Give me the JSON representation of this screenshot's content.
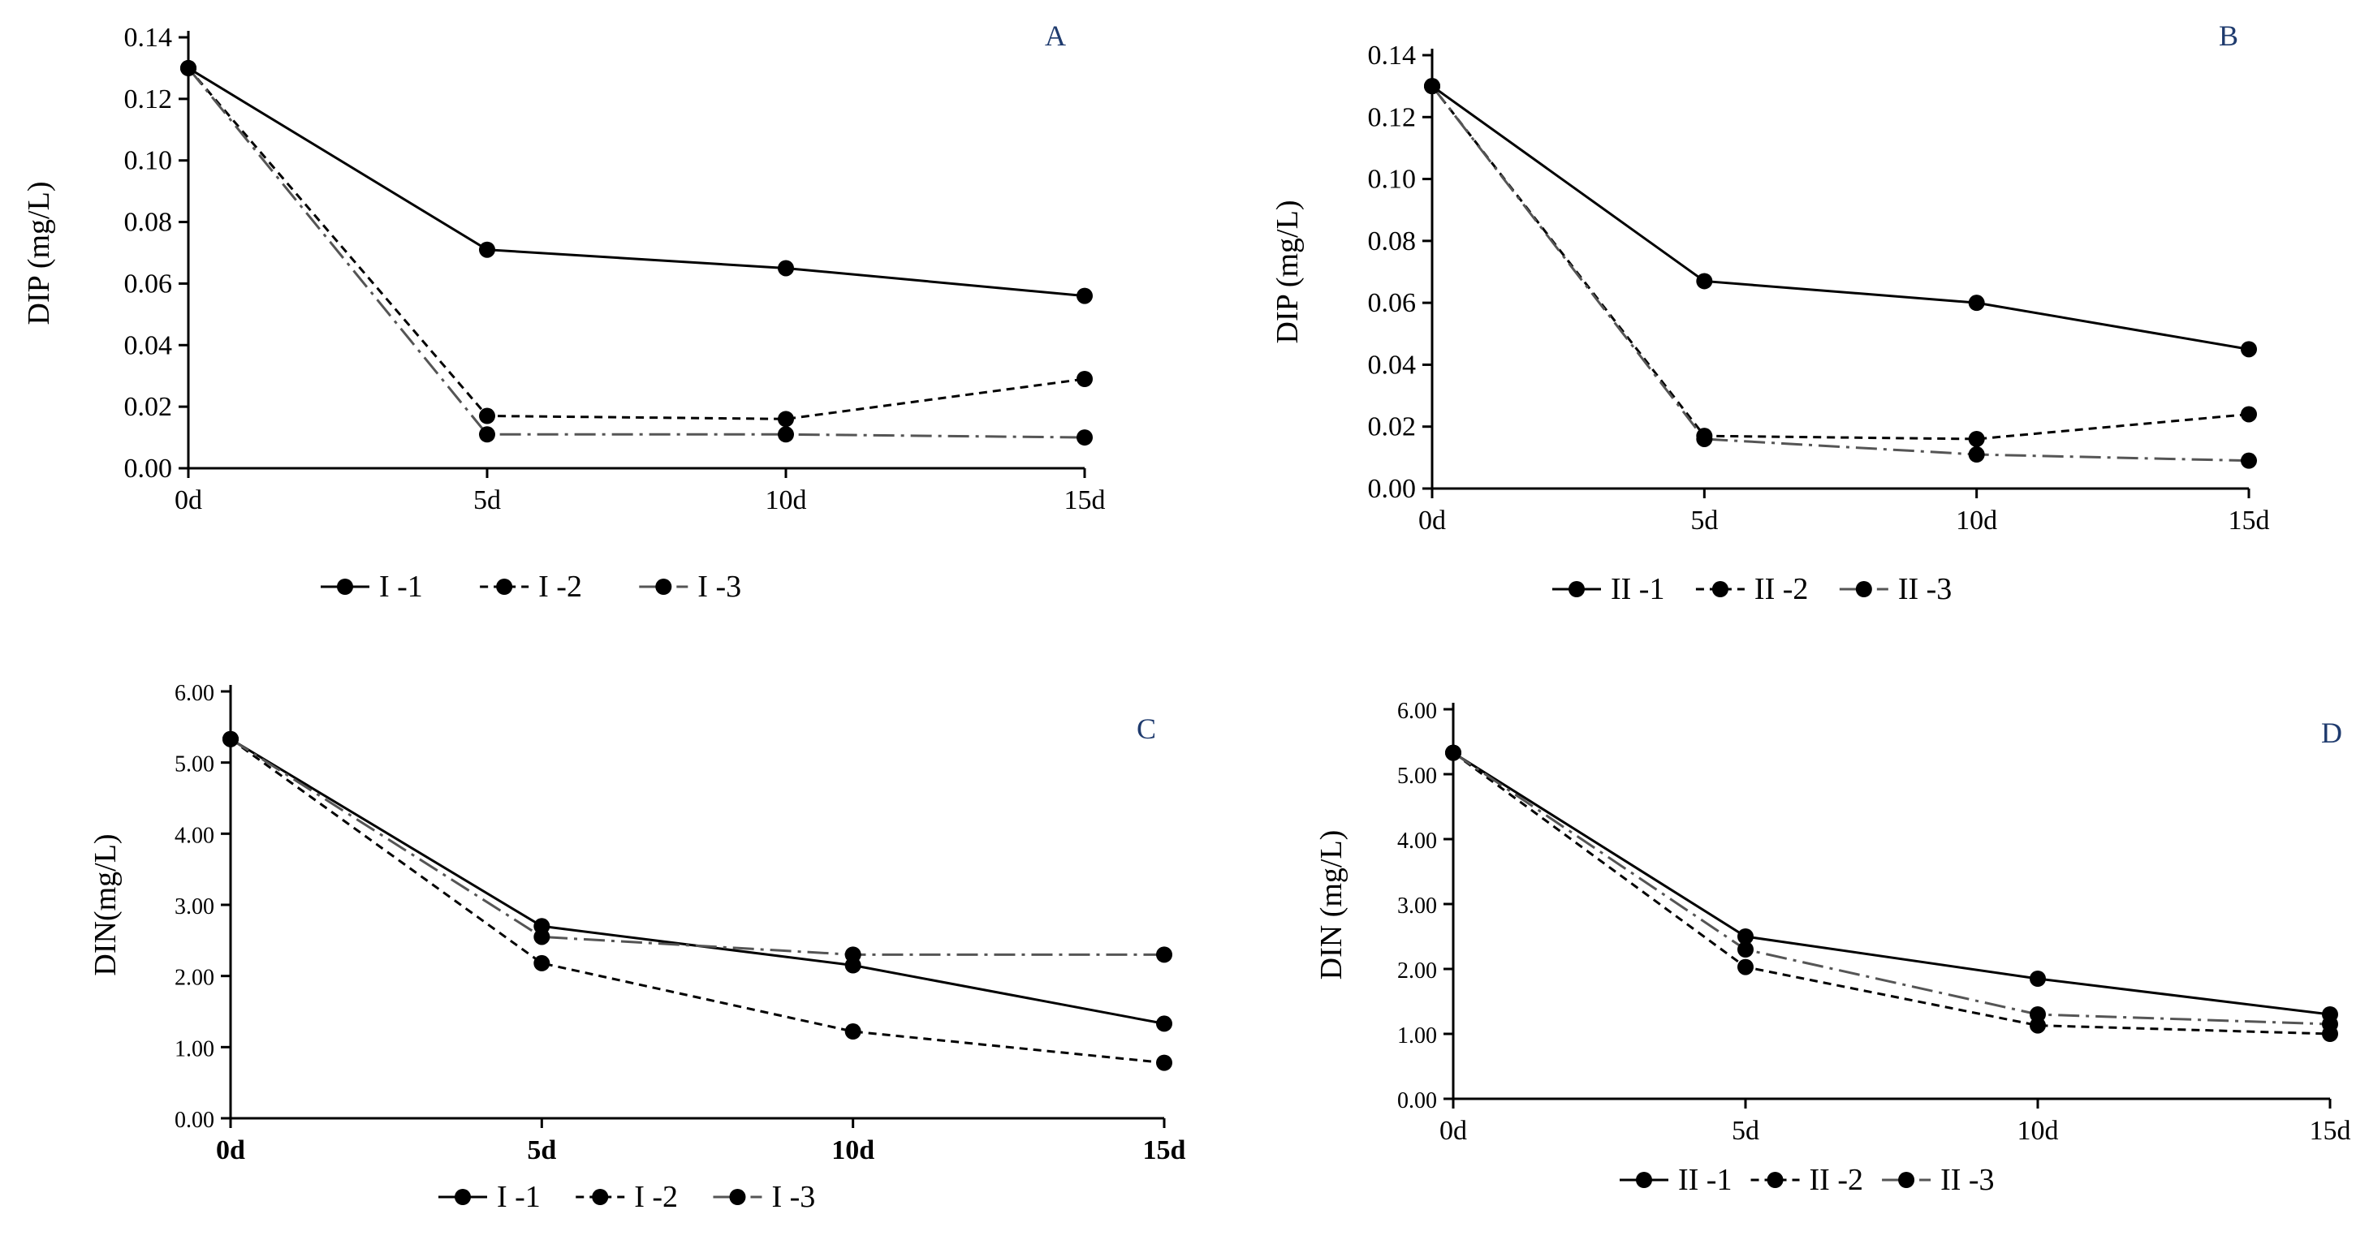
{
  "colors": {
    "line": "#000000",
    "series3_line": "#555555",
    "panel_letter": "#1f3b6e",
    "background": "#ffffff"
  },
  "chart_data": [
    {
      "panel": "A",
      "type": "line",
      "ylabel": "DIP (mg/L)",
      "xlabel": "",
      "categories": [
        "0d",
        "5d",
        "10d",
        "15d"
      ],
      "yticks": [
        "0.00",
        "0.02",
        "0.04",
        "0.06",
        "0.08",
        "0.10",
        "0.12",
        "0.14"
      ],
      "ylim": [
        0,
        0.14
      ],
      "legend_position": "bottom",
      "series": [
        {
          "name": "I -1",
          "style": "solid",
          "values": [
            0.13,
            0.071,
            0.065,
            0.056
          ]
        },
        {
          "name": "I -2",
          "style": "dashed",
          "values": [
            0.13,
            0.017,
            0.016,
            0.029
          ]
        },
        {
          "name": "I -3",
          "style": "dashdot",
          "values": [
            0.13,
            0.011,
            0.011,
            0.01
          ]
        }
      ]
    },
    {
      "panel": "B",
      "type": "line",
      "ylabel": "DIP (mg/L)",
      "xlabel": "",
      "categories": [
        "0d",
        "5d",
        "10d",
        "15d"
      ],
      "yticks": [
        "0.00",
        "0.02",
        "0.04",
        "0.06",
        "0.08",
        "0.10",
        "0.12",
        "0.14"
      ],
      "ylim": [
        0,
        0.14
      ],
      "legend_position": "bottom",
      "series": [
        {
          "name": "II -1",
          "style": "solid",
          "values": [
            0.13,
            0.067,
            0.06,
            0.045
          ]
        },
        {
          "name": "II -2",
          "style": "dashed",
          "values": [
            0.13,
            0.017,
            0.016,
            0.024
          ]
        },
        {
          "name": "II -3",
          "style": "dashdot",
          "values": [
            0.13,
            0.016,
            0.011,
            0.009
          ]
        }
      ]
    },
    {
      "panel": "C",
      "type": "line",
      "ylabel": "DIN(mg/L)",
      "xlabel": "",
      "categories": [
        "0d",
        "5d",
        "10d",
        "15d"
      ],
      "yticks": [
        "0.00",
        "1.00",
        "2.00",
        "3.00",
        "4.00",
        "5.00",
        "6.00"
      ],
      "ylim": [
        0,
        6
      ],
      "legend_position": "bottom",
      "series": [
        {
          "name": "I -1",
          "style": "solid",
          "values": [
            5.33,
            2.7,
            2.15,
            1.33
          ]
        },
        {
          "name": "I -2",
          "style": "dashed",
          "values": [
            5.33,
            2.18,
            1.22,
            0.78
          ]
        },
        {
          "name": "I -3",
          "style": "dashdot",
          "values": [
            5.33,
            2.55,
            2.3,
            2.3
          ]
        }
      ]
    },
    {
      "panel": "D",
      "type": "line",
      "ylabel": "DIN (mg/L)",
      "xlabel": "",
      "categories": [
        "0d",
        "5d",
        "10d",
        "15d"
      ],
      "yticks": [
        "0.00",
        "1.00",
        "2.00",
        "3.00",
        "4.00",
        "5.00",
        "6.00"
      ],
      "ylim": [
        0,
        6
      ],
      "legend_position": "bottom",
      "series": [
        {
          "name": "II -1",
          "style": "solid",
          "values": [
            5.33,
            2.5,
            1.85,
            1.3
          ]
        },
        {
          "name": "II -2",
          "style": "dashed",
          "values": [
            5.33,
            2.03,
            1.13,
            1.0
          ]
        },
        {
          "name": "II -3",
          "style": "dashdot",
          "values": [
            5.33,
            2.3,
            1.3,
            1.15
          ]
        }
      ]
    }
  ]
}
